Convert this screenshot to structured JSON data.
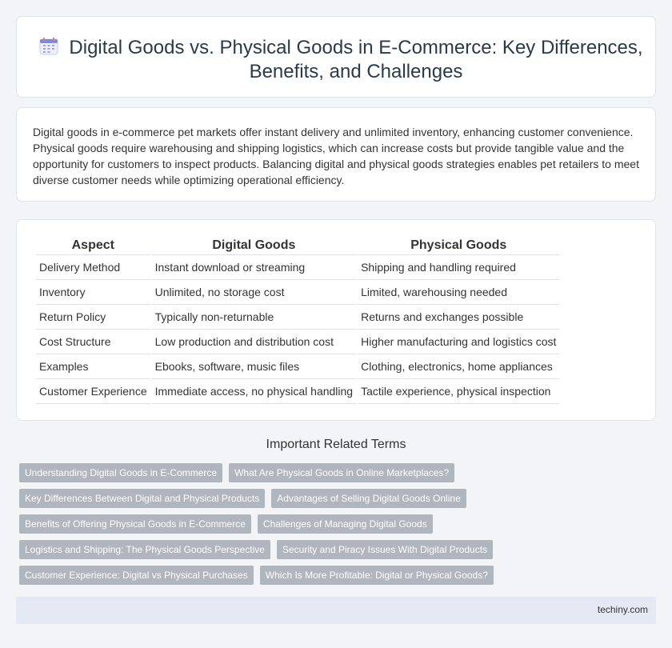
{
  "header": {
    "title": "Digital Goods vs. Physical Goods in E-Commerce: Key Differences, Benefits, and Challenges",
    "icon": "calendar-icon"
  },
  "intro": {
    "text": "Digital goods in e-commerce pet markets offer instant delivery and unlimited inventory, enhancing customer convenience. Physical goods require warehousing and shipping logistics, which can increase costs but provide tangible value and the opportunity for customers to inspect products. Balancing digital and physical goods strategies enables pet retailers to meet diverse customer needs while optimizing operational efficiency."
  },
  "table": {
    "headers": [
      "Aspect",
      "Digital Goods",
      "Physical Goods"
    ],
    "rows": [
      [
        "Delivery Method",
        "Instant download or streaming",
        "Shipping and handling required"
      ],
      [
        "Inventory",
        "Unlimited, no storage cost",
        "Limited, warehousing needed"
      ],
      [
        "Return Policy",
        "Typically non-returnable",
        "Returns and exchanges possible"
      ],
      [
        "Cost Structure",
        "Low production and distribution cost",
        "Higher manufacturing and logistics cost"
      ],
      [
        "Examples",
        "Ebooks, software, music files",
        "Clothing, electronics, home appliances"
      ],
      [
        "Customer Experience",
        "Immediate access, no physical handling",
        "Tactile experience, physical inspection"
      ]
    ]
  },
  "related": {
    "title": "Important Related Terms",
    "tags": [
      [
        "Understanding Digital Goods in E-Commerce",
        "What Are Physical Goods in Online Marketplaces?"
      ],
      [
        "Key Differences Between Digital and Physical Products",
        "Advantages of Selling Digital Goods Online"
      ],
      [
        "Benefits of Offering Physical Goods in E-Commerce",
        "Challenges of Managing Digital Goods"
      ],
      [
        "Logistics and Shipping: The Physical Goods Perspective",
        "Security and Piracy Issues With Digital Products"
      ],
      [
        "Customer Experience: Digital vs Physical Purchases",
        "Which Is More Profitable: Digital or Physical Goods?"
      ]
    ]
  },
  "footer": {
    "site": "techiny.com"
  }
}
